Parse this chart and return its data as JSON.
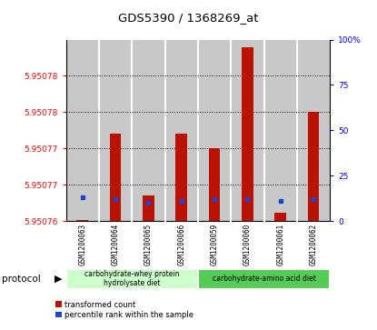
{
  "title": "GDS5390 / 1368269_at",
  "samples": [
    "GSM1200063",
    "GSM1200064",
    "GSM1200065",
    "GSM1200066",
    "GSM1200059",
    "GSM1200060",
    "GSM1200061",
    "GSM1200062"
  ],
  "red_values": [
    5.9507601,
    5.950772,
    5.9507635,
    5.950772,
    5.95077,
    5.950784,
    5.9507612,
    5.950775
  ],
  "blue_pct": [
    13,
    12,
    10,
    11,
    12,
    12,
    11,
    12
  ],
  "ymin": 5.95076,
  "ymax": 5.950785,
  "y2min": 0,
  "y2max": 100,
  "y2_ticks": [
    0,
    25,
    50,
    75,
    100
  ],
  "y2_tick_labels": [
    "0",
    "25",
    "50",
    "75",
    "100%"
  ],
  "left_tick_vals": [
    5.95076,
    5.950765,
    5.95077,
    5.950775,
    5.95078
  ],
  "left_tick_labels": [
    "5.95076",
    "5.95077",
    "5.95077",
    "5.95078",
    "5.95078"
  ],
  "dotted_lines": [
    5.950765,
    5.95077,
    5.950775,
    5.95078
  ],
  "group1_label": "carbohydrate-whey protein\nhydrolysate diet",
  "group2_label": "carbohydrate-amino acid diet",
  "group1_color": "#ccffcc",
  "group2_color": "#55cc55",
  "protocol_label": "protocol",
  "legend_red": "transformed count",
  "legend_blue": "percentile rank within the sample",
  "bar_color": "#bb1100",
  "blue_color": "#2244cc",
  "cell_color": "#c8c8c8",
  "bar_width": 0.35
}
